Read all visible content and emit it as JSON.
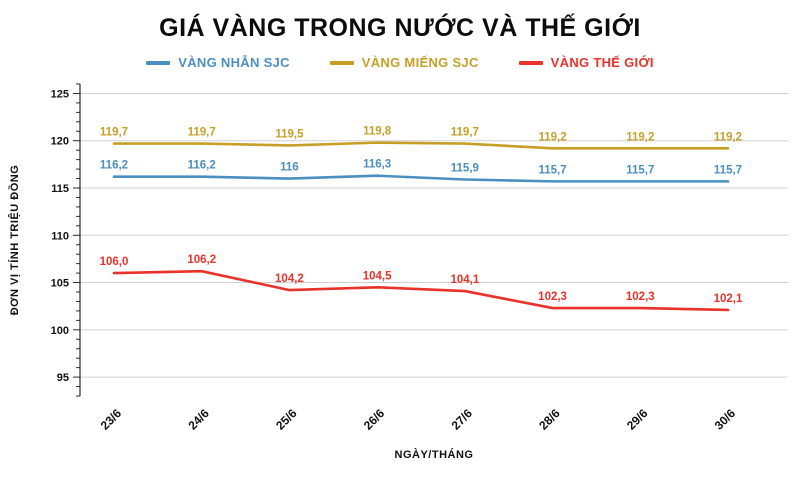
{
  "chart_data": {
    "type": "line",
    "title": "GIÁ VÀNG TRONG NƯỚC VÀ THẾ GIỚI",
    "xlabel": "NGÀY/THÁNG",
    "ylabel": "ĐƠN VỊ TÍNH TRIỆU ĐỒNG",
    "categories": [
      "23/6",
      "24/6",
      "25/6",
      "26/6",
      "27/6",
      "28/6",
      "29/6",
      "30/6"
    ],
    "ylim": [
      93,
      126
    ],
    "yticks": [
      95,
      100,
      105,
      110,
      115,
      120,
      125
    ],
    "grid": true,
    "legend_position": "top",
    "colors": {
      "grid": "#d0d0d0",
      "axis": "#2a2a2a",
      "title": "#0c0c0c"
    },
    "series": [
      {
        "name": "VÀNG NHẪN SJC",
        "color": "#4a8fc0",
        "values": [
          116.2,
          116.2,
          116,
          116.3,
          115.9,
          115.7,
          115.7,
          115.7
        ],
        "labels": [
          "116,2",
          "116,2",
          "116",
          "116,3",
          "115,9",
          "115,7",
          "115,7",
          "115,7"
        ]
      },
      {
        "name": "VÀNG MIẾNG SJC",
        "color": "#c79f27",
        "values": [
          119.7,
          119.7,
          119.5,
          119.8,
          119.7,
          119.2,
          119.2,
          119.2
        ],
        "labels": [
          "119,7",
          "119,7",
          "119,5",
          "119,8",
          "119,7",
          "119,2",
          "119,2",
          "119,2"
        ]
      },
      {
        "name": "VÀNG THẾ GIỚI",
        "color": "#e8322a",
        "values": [
          106.0,
          106.2,
          104.2,
          104.5,
          104.1,
          102.3,
          102.3,
          102.1
        ],
        "labels": [
          "106,0",
          "106,2",
          "104,2",
          "104,5",
          "104,1",
          "102,3",
          "102,3",
          "102,1"
        ]
      }
    ]
  }
}
